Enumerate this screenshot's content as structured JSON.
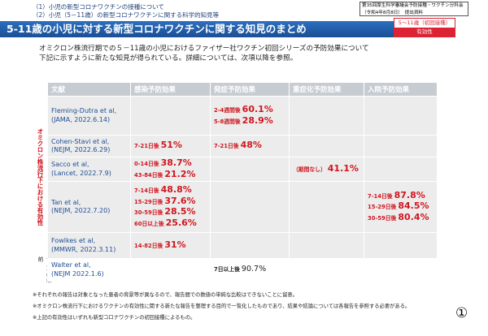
{
  "header": {
    "lines": [
      "（1）小児の新型コロナワクチンの接種について",
      "（2）小児（5－11歳）の新型コロナワクチンに関する科学的知見等"
    ],
    "meeting": [
      "第35回厚生科学審議会予防接種・ワクチン分科会",
      "（令和4年8月8日）　提出資料"
    ]
  },
  "title": "5-11歳の小児に対する新型コロナワクチンに関する知見のまとめ",
  "badge": [
    "5～11歳（初回接種）",
    "有効性"
  ],
  "intro": [
    "オミクロン株流行期での５－11歳の小児におけるファイザー社ワクチン初回シリーズの予防効果について",
    "下記に示すように新たな知見が得られている。詳細については、次項以降を参照。"
  ],
  "table": {
    "headers": [
      "文献",
      "感染予防効果",
      "発症予防効果",
      "重症化予防効果",
      "入院予防効果"
    ],
    "group_labels": [
      "オミクロン株流行下における有効性",
      "デルタ株以前"
    ],
    "rows": [
      {
        "ref": [
          "Fleming-Dutra et al,",
          "(JAMA, 2022.6.14)"
        ],
        "cells": [
          [],
          [
            {
              "period": "2-4週間後",
              "value": "60.1%"
            },
            {
              "period": "5-8週間後",
              "value": "28.9%"
            }
          ],
          [],
          []
        ]
      },
      {
        "ref": [
          "Cohen-Stavi et al,",
          "(NEJM, 2022.6.29)"
        ],
        "cells": [
          [
            {
              "period": "7-21日後",
              "value": "51%"
            }
          ],
          [
            {
              "period": "7-21日後",
              "value": "48%"
            }
          ],
          [],
          []
        ]
      },
      {
        "ref": [
          "Sacco et al,",
          "(Lancet, 2022.7.9)"
        ],
        "cells": [
          [
            {
              "period": "0-14日後",
              "value": "38.7%"
            },
            {
              "period": "43-84日後",
              "value": "21.2%"
            }
          ],
          [],
          [
            {
              "period": "（期間なし）",
              "value": "41.1%"
            }
          ],
          []
        ]
      },
      {
        "ref": [
          "Tan et al,",
          "(NEJM, 2022.7.20)"
        ],
        "cells": [
          [
            {
              "period": "7-14日後",
              "value": "48.8%"
            },
            {
              "period": "15-29日後",
              "value": "37.6%"
            },
            {
              "period": "30-59日後",
              "value": "28.5%"
            },
            {
              "period": "60日以上後",
              "value": "25.6%"
            }
          ],
          [],
          [],
          [
            {
              "period": "7-14日後",
              "value": "87.8%"
            },
            {
              "period": "15-29日後",
              "value": "84.5%"
            },
            {
              "period": "30-59日後",
              "value": "80.4%"
            }
          ]
        ]
      },
      {
        "ref": [
          "Fowlkes et al,",
          "(MMWR, 2022.3.11)"
        ],
        "cells": [
          [
            {
              "period": "14-82日後",
              "value": "31%"
            }
          ],
          [],
          [],
          []
        ]
      },
      {
        "ref": [
          "Walter et al,",
          "(NEJM 2022.1.6)"
        ],
        "cells": [
          [],
          [
            {
              "period": "7日以上後",
              "value": "90.7%"
            }
          ],
          [],
          []
        ]
      }
    ]
  },
  "notes": [
    "※それぞれの報告は対象となった患者の背景等が異なるので、報告間での数値の単純な比較はできないことに留意。",
    "※オミクロン株流行下におけるワクチンの有効性に関する新たな報告を整理する目的で一覧化したものであり、結果や結論については各報告を参照する必要がある。",
    "※上記の有効性はいずれも新型コロナワクチンの初回接種によるもの。"
  ],
  "page": "①"
}
